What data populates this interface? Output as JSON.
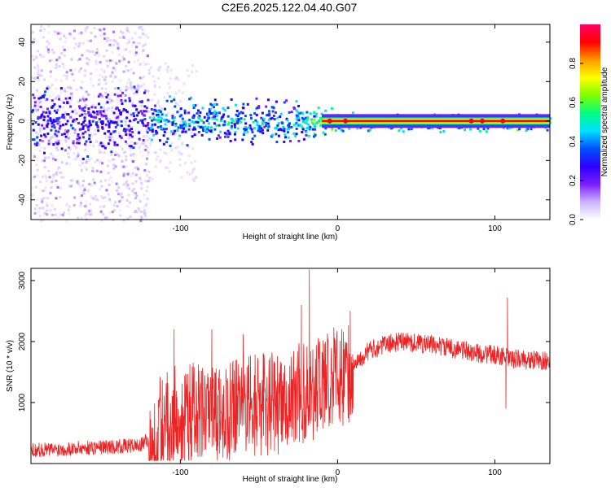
{
  "title": "C2E6.2025.122.04.40.G07",
  "colors": {
    "snr_line": "#ee2222",
    "frame": "#000000",
    "background": "#ffffff",
    "colormap": [
      "#ffffff",
      "#c9b3ff",
      "#7a1cff",
      "#2a00ff",
      "#0050ff",
      "#00e0ff",
      "#00ff80",
      "#7fff00",
      "#ffff00",
      "#ff9900",
      "#ff0000",
      "#ff0066"
    ]
  },
  "chart_data": [
    {
      "type": "heatmap",
      "xlabel": "Height of straight line (km)",
      "ylabel": "Frequency (Hz)",
      "xlim": [
        -195,
        135
      ],
      "ylim": [
        -50,
        49
      ],
      "x_ticks": [
        -100,
        0,
        100
      ],
      "y_ticks": [
        -40,
        -20,
        0,
        20,
        40
      ],
      "colorbar": {
        "label": "Normalized spectral amplitude",
        "range": [
          0,
          1
        ],
        "ticks": [
          0.0,
          0.2,
          0.4,
          0.6,
          0.8
        ]
      },
      "grid": false,
      "description_values": {
        "signal_center_frequency_hz": 0,
        "noisy_region_x_range": [
          -195,
          -120
        ],
        "strong_band_x_range": [
          -10,
          135
        ],
        "peak_spots_x": [
          -5,
          5,
          85,
          92,
          105
        ]
      }
    },
    {
      "type": "line",
      "xlabel": "Height of straight line (km)",
      "ylabel": "SNR (10 * v/v)",
      "xlim": [
        -195,
        135
      ],
      "ylim": [
        0,
        3200
      ],
      "x_ticks": [
        -100,
        0,
        100
      ],
      "y_ticks": [
        1000,
        2000,
        3000
      ],
      "grid": false,
      "series": [
        {
          "x": [
            -195,
            -180,
            -160,
            -140,
            -125,
            -120,
            -115,
            -110,
            -100,
            -90,
            -80,
            -70,
            -60,
            -50,
            -40,
            -30,
            -25,
            -20,
            -15,
            -10,
            -5,
            0,
            5,
            10,
            15,
            20,
            25,
            30,
            40,
            50,
            60,
            70,
            80,
            90,
            100,
            105,
            110,
            115,
            120,
            130,
            135
          ],
          "y": [
            220,
            230,
            260,
            280,
            300,
            420,
            700,
            900,
            950,
            1000,
            900,
            1000,
            1100,
            1150,
            1150,
            1200,
            1350,
            1300,
            1400,
            1500,
            1600,
            1620,
            1550,
            1650,
            1750,
            1850,
            1900,
            1950,
            2000,
            1980,
            1950,
            1900,
            1860,
            1800,
            1780,
            1760,
            1700,
            1720,
            1700,
            1680,
            1700
          ]
        }
      ],
      "spikes": [
        {
          "x": -18,
          "y": 3180
        },
        {
          "x": -23,
          "y": 2600
        },
        {
          "x": -80,
          "y": 2200
        },
        {
          "x": -104,
          "y": 2200
        },
        {
          "x": -60,
          "y": 2120
        },
        {
          "x": 8,
          "y": 2500
        },
        {
          "x": 108,
          "y": 2720
        },
        {
          "x": 107,
          "y": 900
        },
        {
          "x": 10,
          "y": 900
        }
      ]
    }
  ]
}
